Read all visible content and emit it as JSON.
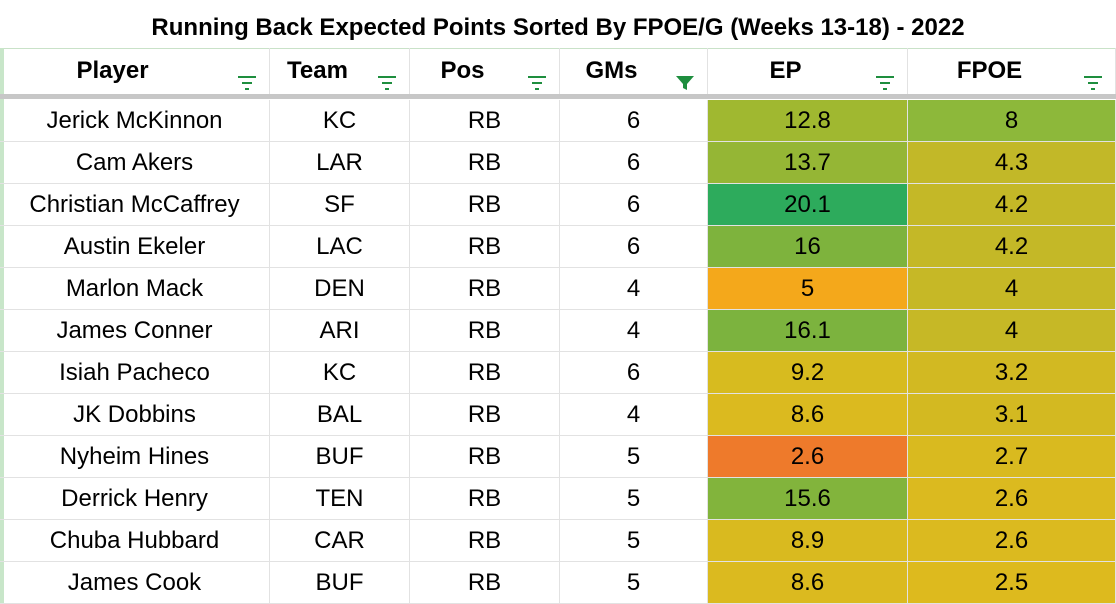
{
  "title": "Running Back Expected Points Sorted By FPOE/G (Weeks 13-18) - 2022",
  "columns": [
    {
      "label": "Player",
      "filter_icon": "filter-lines-icon"
    },
    {
      "label": "Team",
      "filter_icon": "filter-lines-icon"
    },
    {
      "label": "Pos",
      "filter_icon": "filter-lines-icon"
    },
    {
      "label": "GMs",
      "filter_icon": "filter-funnel-icon"
    },
    {
      "label": "EP",
      "filter_icon": "filter-lines-icon"
    },
    {
      "label": "FPOE",
      "filter_icon": "filter-lines-icon"
    }
  ],
  "colors": {
    "filter_green": "#1e8e3e",
    "gridline": "#e2e2e2",
    "frozen_divider": "#c7c7c7"
  },
  "rows": [
    {
      "player": "Jerick McKinnon",
      "team": "KC",
      "pos": "RB",
      "gms": "6",
      "ep": "12.8",
      "fpoe": "8",
      "ep_color": "#a0b830",
      "fpoe_color": "#8db83a"
    },
    {
      "player": "Cam Akers",
      "team": "LAR",
      "pos": "RB",
      "gms": "6",
      "ep": "13.7",
      "fpoe": "4.3",
      "ep_color": "#95b635",
      "fpoe_color": "#c2b828"
    },
    {
      "player": "Christian McCaffrey",
      "team": "SF",
      "pos": "RB",
      "gms": "6",
      "ep": "20.1",
      "fpoe": "4.2",
      "ep_color": "#2dab5c",
      "fpoe_color": "#c4b827"
    },
    {
      "player": "Austin Ekeler",
      "team": "LAC",
      "pos": "RB",
      "gms": "6",
      "ep": "16",
      "fpoe": "4.2",
      "ep_color": "#7eb33d",
      "fpoe_color": "#c4b827"
    },
    {
      "player": "Marlon Mack",
      "team": "DEN",
      "pos": "RB",
      "gms": "4",
      "ep": "5",
      "fpoe": "4",
      "ep_color": "#f4a81b",
      "fpoe_color": "#c6b826"
    },
    {
      "player": "James Conner",
      "team": "ARI",
      "pos": "RB",
      "gms": "4",
      "ep": "16.1",
      "fpoe": "4",
      "ep_color": "#7cb33e",
      "fpoe_color": "#c6b826"
    },
    {
      "player": "Isiah Pacheco",
      "team": "KC",
      "pos": "RB",
      "gms": "6",
      "ep": "9.2",
      "fpoe": "3.2",
      "ep_color": "#d7bb1f",
      "fpoe_color": "#d2b922"
    },
    {
      "player": "JK Dobbins",
      "team": "BAL",
      "pos": "RB",
      "gms": "4",
      "ep": "8.6",
      "fpoe": "3.1",
      "ep_color": "#dbba1f",
      "fpoe_color": "#d3b921"
    },
    {
      "player": "Nyheim Hines",
      "team": "BUF",
      "pos": "RB",
      "gms": "5",
      "ep": "2.6",
      "fpoe": "2.7",
      "ep_color": "#ee7a2b",
      "fpoe_color": "#d9ba1f"
    },
    {
      "player": "Derrick Henry",
      "team": "TEN",
      "pos": "RB",
      "gms": "5",
      "ep": "15.6",
      "fpoe": "2.6",
      "ep_color": "#82b43c",
      "fpoe_color": "#dbba1f"
    },
    {
      "player": "Chuba Hubbard",
      "team": "CAR",
      "pos": "RB",
      "gms": "5",
      "ep": "8.9",
      "fpoe": "2.6",
      "ep_color": "#d9ba1f",
      "fpoe_color": "#dbba1f"
    },
    {
      "player": "James Cook",
      "team": "BUF",
      "pos": "RB",
      "gms": "5",
      "ep": "8.6",
      "fpoe": "2.5",
      "ep_color": "#dbba1f",
      "fpoe_color": "#ddba1e"
    }
  ]
}
